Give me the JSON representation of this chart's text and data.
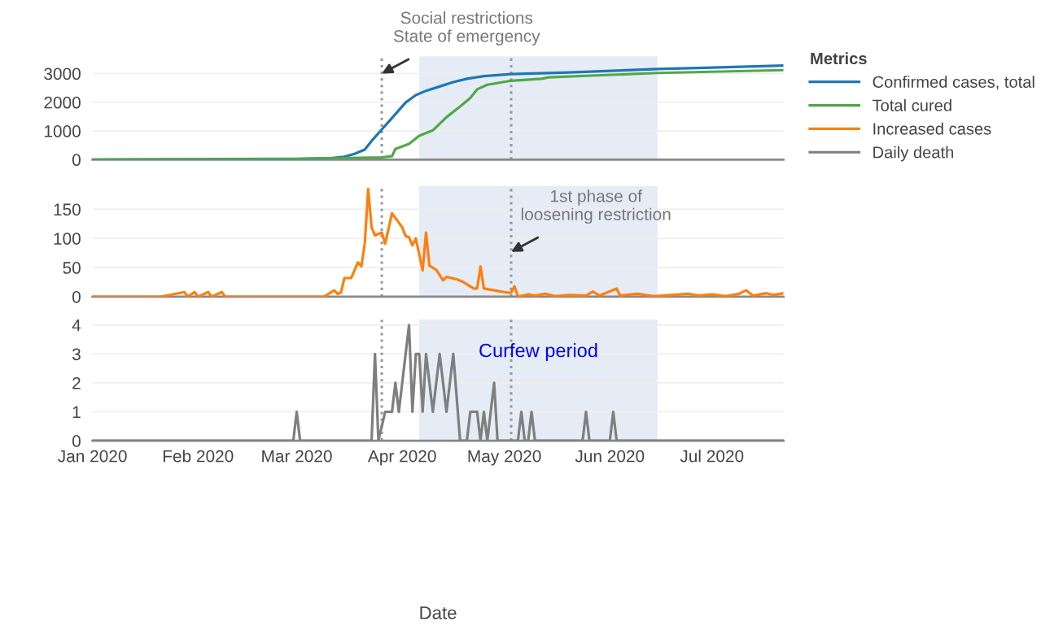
{
  "chart_data": [
    {
      "type": "line",
      "x": [
        "2020-01-01",
        "2020-02-10",
        "2020-03-01",
        "2020-03-11",
        "2020-03-15",
        "2020-03-18",
        "2020-03-21",
        "2020-03-23",
        "2020-03-26",
        "2020-03-29",
        "2020-04-02",
        "2020-04-05",
        "2020-04-08",
        "2020-04-12",
        "2020-04-16",
        "2020-04-20",
        "2020-04-25",
        "2020-05-03",
        "2020-05-20",
        "2020-06-15",
        "2020-06-29",
        "2020-07-22"
      ],
      "series": [
        {
          "name": "Confirmed cases, total",
          "color": "#1f77b4",
          "values": [
            0,
            20,
            30,
            50,
            100,
            200,
            350,
            650,
            1050,
            1450,
            1990,
            2250,
            2400,
            2550,
            2700,
            2820,
            2910,
            2980,
            3040,
            3160,
            3200,
            3280
          ]
        },
        {
          "name": "Total cured",
          "color": "#50a848",
          "x": [
            "2020-01-01",
            "2020-03-01",
            "2020-03-26",
            "2020-03-29",
            "2020-03-30",
            "2020-04-03",
            "2020-04-06",
            "2020-04-10",
            "2020-04-14",
            "2020-04-18",
            "2020-04-21",
            "2020-04-23",
            "2020-04-26",
            "2020-05-03",
            "2020-05-12",
            "2020-05-14",
            "2020-06-15",
            "2020-07-22"
          ],
          "values": [
            0,
            20,
            80,
            120,
            370,
            550,
            830,
            1020,
            1480,
            1850,
            2150,
            2450,
            2610,
            2750,
            2820,
            2870,
            3020,
            3120
          ]
        }
      ],
      "xlim": [
        "2020-01-01",
        "2020-07-22"
      ],
      "ylim": [
        0,
        3600
      ],
      "yticks": [
        0,
        1000,
        2000,
        3000
      ],
      "tick_labels": "y",
      "grid": "y",
      "legend": "top right",
      "legend_title": "Metrics",
      "ref_lines": [
        {
          "axis": "x",
          "value": "2020-03-26",
          "color": "#999999",
          "line_style": "dotted"
        },
        {
          "axis": "x",
          "value": "2020-05-03",
          "color": "#999999",
          "line_style": "dotted"
        }
      ],
      "bands": [
        {
          "axis": "x",
          "from": "2020-04-06",
          "to": "2020-06-15",
          "color": "#e5ecf6"
        }
      ],
      "annotations": [
        {
          "text": "Social restrictions\nState of emergency",
          "x": "2020-03-26",
          "y": 3000
        }
      ]
    },
    {
      "type": "line",
      "x": [
        "2020-01-01",
        "2020-01-21",
        "2020-01-28",
        "2020-01-29",
        "2020-01-31",
        "2020-02-01",
        "2020-02-04",
        "2020-02-05",
        "2020-02-08",
        "2020-02-09",
        "2020-03-09",
        "2020-03-12",
        "2020-03-13",
        "2020-03-14",
        "2020-03-15",
        "2020-03-17",
        "2020-03-19",
        "2020-03-20",
        "2020-03-21",
        "2020-03-22",
        "2020-03-23",
        "2020-03-24",
        "2020-03-26",
        "2020-03-27",
        "2020-03-29",
        "2020-04-01",
        "2020-04-02",
        "2020-04-03",
        "2020-04-04",
        "2020-04-05",
        "2020-04-07",
        "2020-04-08",
        "2020-04-09",
        "2020-04-11",
        "2020-04-13",
        "2020-04-14",
        "2020-04-17",
        "2020-04-19",
        "2020-04-22",
        "2020-04-23",
        "2020-04-24",
        "2020-04-25",
        "2020-04-28",
        "2020-05-02",
        "2020-05-03",
        "2020-05-04",
        "2020-05-05",
        "2020-05-08",
        "2020-05-10",
        "2020-05-13",
        "2020-05-16",
        "2020-05-20",
        "2020-05-25",
        "2020-05-27",
        "2020-05-29",
        "2020-06-03",
        "2020-06-04",
        "2020-06-09",
        "2020-06-14",
        "2020-06-19",
        "2020-06-24",
        "2020-06-27",
        "2020-07-01",
        "2020-07-05",
        "2020-07-09",
        "2020-07-11",
        "2020-07-13",
        "2020-07-17",
        "2020-07-19",
        "2020-07-22"
      ],
      "series": [
        {
          "name": "Increased cases",
          "color": "#ff7f0e",
          "values": [
            0,
            0,
            8,
            0,
            8,
            0,
            8,
            0,
            8,
            0,
            0,
            11,
            5,
            7,
            32,
            32,
            59,
            52,
            91,
            185,
            119,
            105,
            110,
            91,
            143,
            119,
            104,
            102,
            88,
            100,
            45,
            110,
            53,
            46,
            28,
            34,
            30,
            25,
            14,
            14,
            52,
            14,
            11,
            7,
            7,
            18,
            0,
            4,
            2,
            5,
            1,
            3,
            2,
            9,
            2,
            14,
            2,
            5,
            1,
            3,
            5,
            2,
            4,
            1,
            5,
            11,
            2,
            6,
            3,
            6
          ]
        }
      ],
      "xlim": [
        "2020-01-01",
        "2020-07-22"
      ],
      "ylim": [
        0,
        190
      ],
      "yticks": [
        0,
        50,
        100,
        150
      ],
      "tick_labels": "y",
      "grid": "y",
      "ref_lines": [
        {
          "axis": "x",
          "value": "2020-03-26",
          "color": "#999999",
          "line_style": "dotted"
        },
        {
          "axis": "x",
          "value": "2020-05-03",
          "color": "#999999",
          "line_style": "dotted"
        }
      ],
      "bands": [
        {
          "axis": "x",
          "from": "2020-04-06",
          "to": "2020-06-15",
          "color": "#e5ecf6"
        }
      ],
      "annotations": [
        {
          "text": "1st phase of\nloosening restriction",
          "x": "2020-05-03",
          "y": 77
        }
      ]
    },
    {
      "type": "line",
      "x": [
        "2020-01-01",
        "2020-02-29",
        "2020-03-01",
        "2020-03-02",
        "2020-03-23",
        "2020-03-24",
        "2020-03-25",
        "2020-03-27",
        "2020-03-29",
        "2020-03-30",
        "2020-03-31",
        "2020-04-03",
        "2020-04-04",
        "2020-04-05",
        "2020-04-06",
        "2020-04-07",
        "2020-04-08",
        "2020-04-10",
        "2020-04-12",
        "2020-04-14",
        "2020-04-16",
        "2020-04-18",
        "2020-04-20",
        "2020-04-21",
        "2020-04-23",
        "2020-04-24",
        "2020-04-25",
        "2020-04-26",
        "2020-04-28",
        "2020-04-29",
        "2020-05-05",
        "2020-05-06",
        "2020-05-07",
        "2020-05-08",
        "2020-05-09",
        "2020-05-10",
        "2020-05-24",
        "2020-05-25",
        "2020-05-26",
        "2020-06-01",
        "2020-06-02",
        "2020-06-03",
        "2020-07-22"
      ],
      "series": [
        {
          "name": "Daily death",
          "color": "#7f7f7f",
          "values": [
            0,
            0,
            1,
            0,
            0,
            3,
            0,
            1,
            1,
            2,
            1,
            4,
            1,
            3,
            3,
            1,
            3,
            1,
            3,
            1,
            3,
            0,
            0,
            1,
            1,
            0,
            1,
            0,
            2,
            0,
            0,
            1,
            0,
            0,
            1,
            0,
            0,
            1,
            0,
            0,
            1,
            0,
            0
          ]
        }
      ],
      "xlim": [
        "2020-01-01",
        "2020-07-22"
      ],
      "ylim": [
        0,
        4.2
      ],
      "yticks": [
        0,
        1,
        2,
        3,
        4
      ],
      "xticks": [
        {
          "value": "2020-01-01",
          "label": "Jan 2020"
        },
        {
          "value": "2020-02-01",
          "label": "Feb 2020"
        },
        {
          "value": "2020-03-01",
          "label": "Mar 2020"
        },
        {
          "value": "2020-04-01",
          "label": "Apr 2020"
        },
        {
          "value": "2020-05-01",
          "label": "May 2020"
        },
        {
          "value": "2020-06-01",
          "label": "Jun 2020"
        },
        {
          "value": "2020-07-01",
          "label": "Jul 2020"
        }
      ],
      "xlabel": "Date",
      "grid": "y",
      "ref_lines": [
        {
          "axis": "x",
          "value": "2020-03-26",
          "color": "#999999",
          "line_style": "dotted"
        },
        {
          "axis": "x",
          "value": "2020-05-03",
          "color": "#999999",
          "line_style": "dotted"
        }
      ],
      "bands": [
        {
          "axis": "x",
          "from": "2020-04-06",
          "to": "2020-06-15",
          "color": "#e5ecf6",
          "label": "Curfew period"
        }
      ]
    }
  ]
}
